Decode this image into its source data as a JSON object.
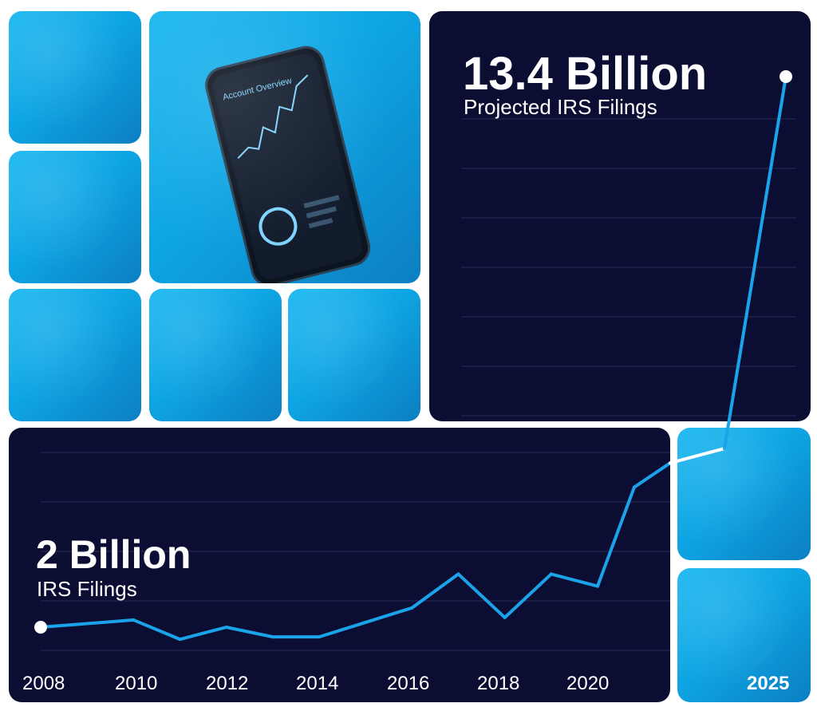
{
  "colors": {
    "panel": "#0c0d33",
    "line": "#1aa3e8",
    "photo": "#0ea5e4"
  },
  "headline_top": {
    "value": "13.4 Billion",
    "label": "Projected IRS Filings"
  },
  "headline_bottom": {
    "value": "2 Billion",
    "label": "IRS Filings"
  },
  "photos": {
    "phone_screen_title": "Account Overview"
  },
  "chart_data": {
    "type": "line",
    "x_tick_labels": [
      "2008",
      "2010",
      "2012",
      "2014",
      "2016",
      "2018",
      "2020",
      "2025"
    ],
    "series": [
      {
        "x": [
          2008,
          2010,
          2011,
          2012,
          2013,
          2014,
          2015,
          2016,
          2017,
          2018,
          2019,
          2020,
          2021,
          2022,
          2024,
          2025
        ],
        "y": [
          2.0,
          2.15,
          1.75,
          2.0,
          1.8,
          1.8,
          2.1,
          2.4,
          3.1,
          2.2,
          3.1,
          2.85,
          4.9,
          5.4,
          5.7,
          13.4
        ]
      }
    ],
    "annotations": [
      "2 Billion",
      "IRS Filings",
      "13.4 Billion",
      "Projected IRS Filings"
    ]
  }
}
